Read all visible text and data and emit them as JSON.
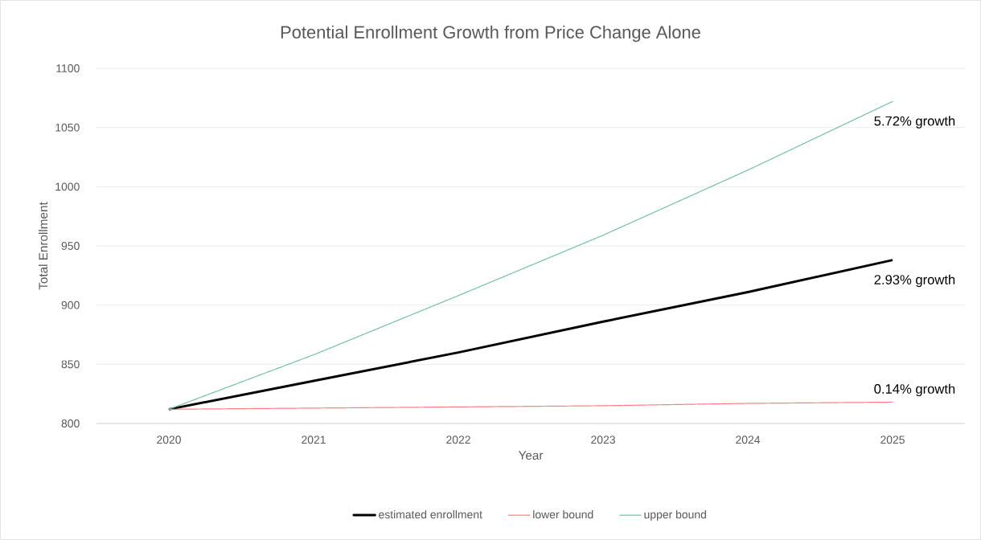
{
  "chart_data": {
    "type": "line",
    "title": "Potential Enrollment Growth from Price Change Alone",
    "xlabel": "Year",
    "ylabel": "Total Enrollment",
    "categories": [
      "2020",
      "2021",
      "2022",
      "2023",
      "2024",
      "2025"
    ],
    "series": [
      {
        "name": "estimated enrollment",
        "color": "#000000",
        "line_style": "solid",
        "values": [
          812,
          836,
          860,
          886,
          911,
          938
        ]
      },
      {
        "name": "lower bound",
        "color": "#ff7c80",
        "line_style": "dotted",
        "values": [
          812,
          813,
          814,
          815,
          817,
          818
        ]
      },
      {
        "name": "upper bound",
        "color": "#70c0a8",
        "line_style": "dotted",
        "values": [
          812,
          858,
          908,
          959,
          1014,
          1072
        ]
      }
    ],
    "ylim": [
      800,
      1100
    ],
    "yticks": [
      800,
      850,
      900,
      950,
      1000,
      1050,
      1100
    ],
    "grid": "y",
    "legend": "bottom",
    "marker": "none",
    "annotations": [
      {
        "text": "5.72% growth",
        "x": "2025",
        "y": 1072
      },
      {
        "text": "2.93% growth",
        "x": "2025",
        "y": 938
      },
      {
        "text": "0.14% growth",
        "x": "2025",
        "y": 818
      }
    ]
  }
}
